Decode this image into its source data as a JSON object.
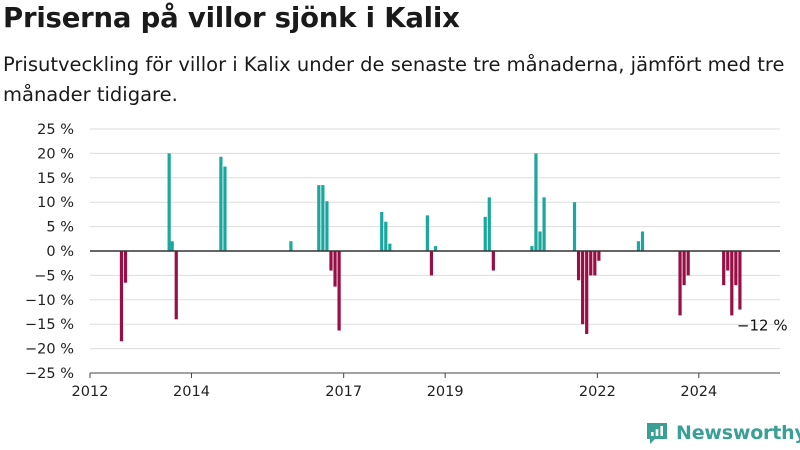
{
  "header": {
    "title": "Priserna på villor sjönk i Kalix",
    "subtitle": "Prisutveckling för villor i Kalix under de senaste tre månaderna, jämfört med tre månader tidigare."
  },
  "brand": {
    "name": "Newsworthy",
    "icon": "newsworthy-logo-icon"
  },
  "colors": {
    "positive": "#1aa79d",
    "negative": "#990f45",
    "zero_line": "#333333",
    "grid": "#dddddd"
  },
  "chart_data": {
    "type": "bar",
    "title": "",
    "xlabel": "",
    "ylabel": "",
    "xlim": [
      2012.0,
      2025.6
    ],
    "ylim": [
      -25,
      25
    ],
    "y_ticks": [
      25,
      20,
      15,
      10,
      5,
      0,
      -5,
      -10,
      -15,
      -20,
      -25
    ],
    "y_tick_labels": [
      "25 %",
      "20 %",
      "15 %",
      "10 %",
      "5 %",
      "0 %",
      "−5 %",
      "−10 %",
      "−15 %",
      "−20 %",
      "−25 %"
    ],
    "x_ticks": [
      2012,
      2014,
      2017,
      2019,
      2022,
      2024
    ],
    "x_tick_labels": [
      "2012",
      "2014",
      "2017",
      "2019",
      "2022",
      "2024"
    ],
    "grid": true,
    "legend": "none",
    "annotation": {
      "text": "−12 %",
      "x": 2025.25,
      "y": -12
    },
    "series": [
      {
        "x": [
          2012.62,
          2012.7,
          2013.56,
          2013.62,
          2013.7,
          2014.58,
          2014.66,
          2015.96,
          2016.51,
          2016.59,
          2016.67,
          2016.75,
          2016.83,
          2016.91,
          2017.75,
          2017.83,
          2017.91,
          2018.65,
          2018.73,
          2018.81,
          2019.79,
          2019.87,
          2019.95,
          2020.71,
          2020.79,
          2020.87,
          2020.95,
          2021.55,
          2021.63,
          2021.71,
          2021.79,
          2021.87,
          2021.95,
          2022.03,
          2022.81,
          2022.89,
          2023.63,
          2023.71,
          2023.79,
          2024.49,
          2024.57,
          2024.65,
          2024.73,
          2024.81
        ],
        "values": [
          -18.5,
          -6.5,
          20,
          2,
          -14,
          19.3,
          17.3,
          2,
          13.5,
          13.5,
          10.2,
          -4,
          -7.3,
          -16.3,
          8,
          6,
          1.5,
          7.3,
          -5,
          1,
          7,
          11,
          -4,
          1,
          20,
          4,
          11,
          10,
          -6,
          -15,
          -17,
          -5,
          -5,
          -2,
          2,
          4,
          -13.2,
          -7,
          -5,
          -7,
          -4,
          -13.2,
          -7,
          -12
        ]
      }
    ]
  }
}
